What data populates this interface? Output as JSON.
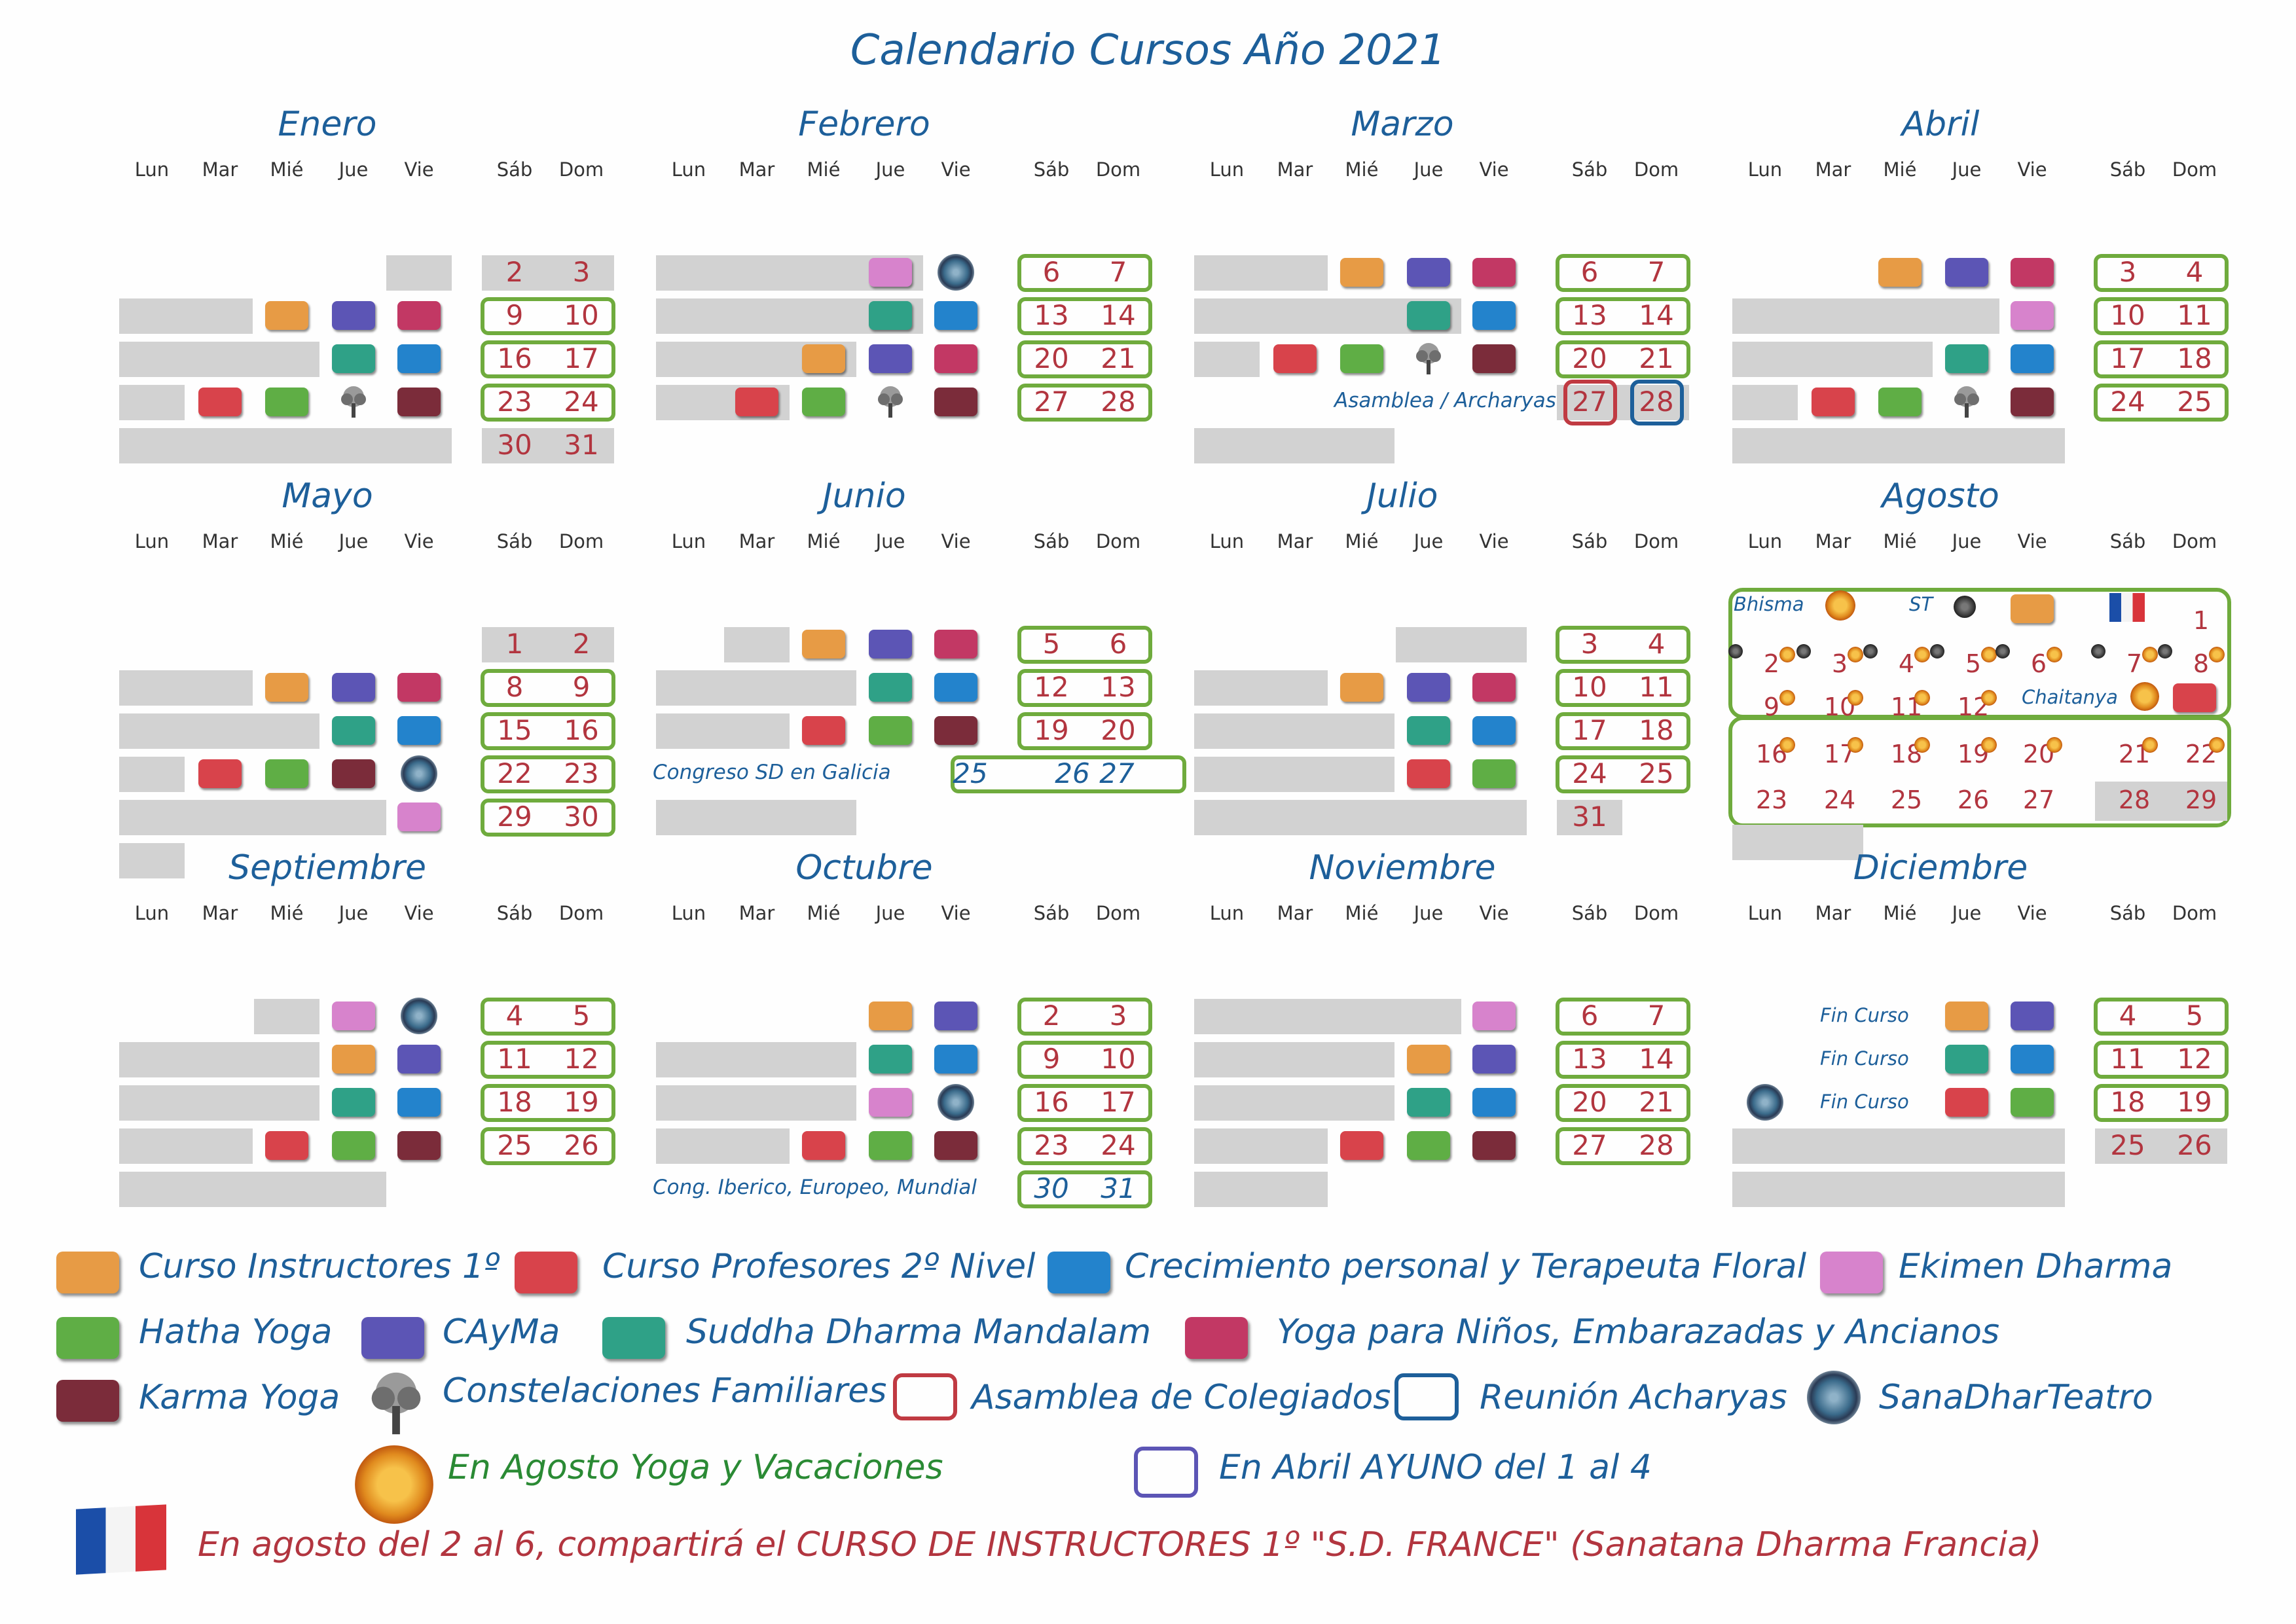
{
  "title": "Calendario Cursos Año 2021",
  "weekdays": [
    "Lun",
    "Mar",
    "Mié",
    "Jue",
    "Vie",
    "Sáb",
    "Dom"
  ],
  "colors": {
    "instructores": "#e79b45",
    "profesores": "#d8434b",
    "crecimiento": "#2383cc",
    "ekimen": "#d783cc",
    "hatha": "#5fae45",
    "cayma": "#5c55b5",
    "suddha": "#2fa187",
    "ninos": "#c23864",
    "karma": "#7b2c3a",
    "green_frame": "#6fab3d",
    "red_text": "#b2353f",
    "blue_text": "#1d5f9a"
  },
  "months": [
    {
      "name": "Enero",
      "weekends": [
        [
          "2",
          "3"
        ],
        [
          "9",
          "10"
        ],
        [
          "16",
          "17"
        ],
        [
          "23",
          "24"
        ],
        [
          "30",
          "31"
        ]
      ]
    },
    {
      "name": "Febrero",
      "weekends": [
        [
          "6",
          "7"
        ],
        [
          "13",
          "14"
        ],
        [
          "20",
          "21"
        ],
        [
          "27",
          "28"
        ]
      ]
    },
    {
      "name": "Marzo",
      "weekends": [
        [
          "6",
          "7"
        ],
        [
          "13",
          "14"
        ],
        [
          "20",
          "21"
        ],
        [
          "27",
          "28"
        ]
      ],
      "note": "Asamblea / Archaryas"
    },
    {
      "name": "Abril",
      "weekends": [
        [
          "3",
          "4"
        ],
        [
          "10",
          "11"
        ],
        [
          "17",
          "18"
        ],
        [
          "24",
          "25"
        ]
      ]
    },
    {
      "name": "Mayo",
      "weekends": [
        [
          "1",
          "2"
        ],
        [
          "8",
          "9"
        ],
        [
          "15",
          "16"
        ],
        [
          "22",
          "23"
        ],
        [
          "29",
          "30"
        ]
      ]
    },
    {
      "name": "Junio",
      "weekends": [
        [
          "5",
          "6"
        ],
        [
          "12",
          "13"
        ],
        [
          "19",
          "20"
        ]
      ],
      "note": "Congreso SD en Galicia",
      "special": [
        "25",
        "26",
        "27"
      ]
    },
    {
      "name": "Julio",
      "weekends": [
        [
          "3",
          "4"
        ],
        [
          "10",
          "11"
        ],
        [
          "17",
          "18"
        ],
        [
          "24",
          "25"
        ],
        [
          "31",
          ""
        ]
      ]
    },
    {
      "name": "Agosto",
      "labels": {
        "bhisma": "Bhisma",
        "st": "ST",
        "chaitanya": "Chaitanya"
      },
      "rows": [
        [
          "",
          "",
          "",
          "",
          "",
          "",
          "1"
        ],
        [
          "2",
          "3",
          "4",
          "5",
          "6",
          "7",
          "8"
        ],
        [
          "9",
          "10",
          "11",
          "12",
          "",
          "",
          ""
        ],
        [
          "16",
          "17",
          "18",
          "19",
          "20",
          "21",
          "22"
        ],
        [
          "23",
          "24",
          "25",
          "26",
          "27",
          "28",
          "29"
        ]
      ]
    },
    {
      "name": "Septiembre",
      "weekends": [
        [
          "4",
          "5"
        ],
        [
          "11",
          "12"
        ],
        [
          "18",
          "19"
        ],
        [
          "25",
          "26"
        ]
      ]
    },
    {
      "name": "Octubre",
      "weekends": [
        [
          "2",
          "3"
        ],
        [
          "9",
          "10"
        ],
        [
          "16",
          "17"
        ],
        [
          "23",
          "24"
        ],
        [
          "30",
          "31"
        ]
      ],
      "note": "Cong. Iberico, Europeo, Mundial"
    },
    {
      "name": "Noviembre",
      "weekends": [
        [
          "6",
          "7"
        ],
        [
          "13",
          "14"
        ],
        [
          "20",
          "21"
        ],
        [
          "27",
          "28"
        ]
      ]
    },
    {
      "name": "Diciembre",
      "weekends": [
        [
          "4",
          "5"
        ],
        [
          "11",
          "12"
        ],
        [
          "18",
          "19"
        ],
        [
          "25",
          "26"
        ]
      ],
      "fin": "Fin Curso"
    }
  ],
  "legend": {
    "instructores": "Curso Instructores 1º",
    "profesores": "Curso Profesores 2º Nivel",
    "crecimiento": "Crecimiento personal y Terapeuta Floral",
    "ekimen": "Ekimen Dharma",
    "hatha": "Hatha Yoga",
    "cayma": "CAyMa",
    "suddha": "Suddha Dharma Mandalam",
    "ninos": "Yoga para Niños, Embarazadas y Ancianos",
    "karma": "Karma Yoga",
    "constelaciones": "Constelaciones Familiares",
    "asamblea": "Asamblea de Colegiados",
    "reunion": "Reunión Acharyas",
    "sanadhar": "SanaDharTeatro",
    "agosto": "En Agosto Yoga y Vacaciones",
    "abril": "En Abril AYUNO del 1 al 4"
  },
  "footer": "En agosto del 2 al 6, compartirá el CURSO DE INSTRUCTORES 1º  \"S.D. FRANCE\" (Sanatana Dharma Francia)"
}
